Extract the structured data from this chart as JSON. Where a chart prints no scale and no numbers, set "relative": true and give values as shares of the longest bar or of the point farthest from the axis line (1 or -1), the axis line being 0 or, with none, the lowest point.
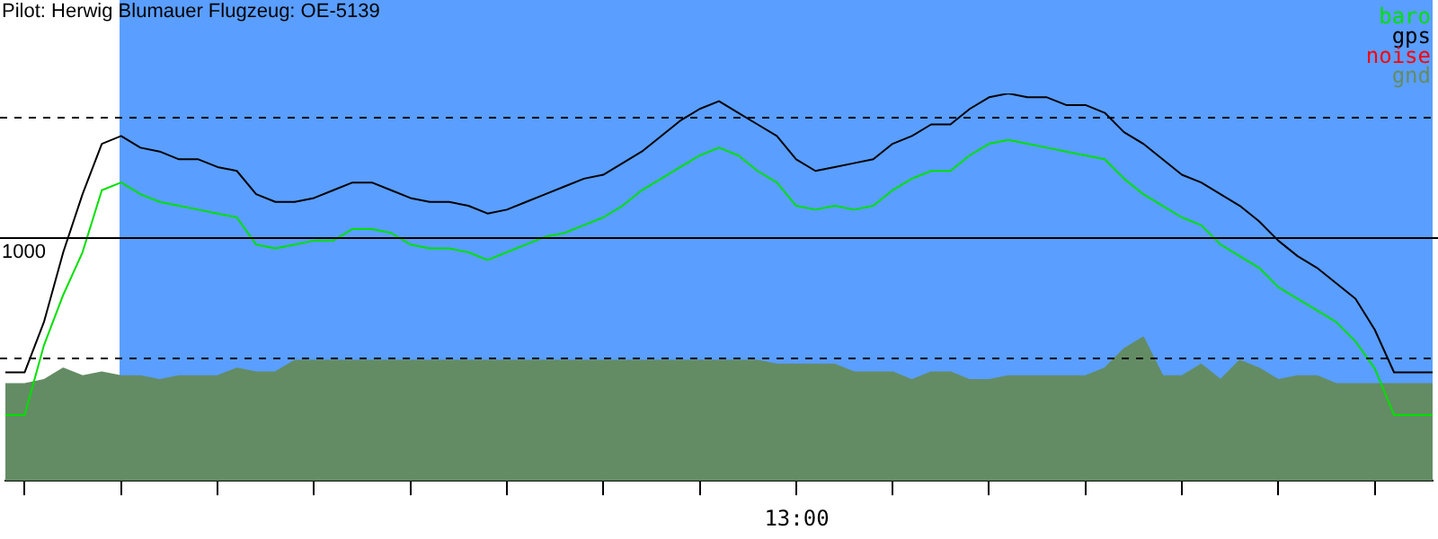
{
  "chart_data": {
    "type": "line",
    "title": "Pilot: Herwig Blumauer Flugzeug: OE-5139",
    "relative": true,
    "grid": false,
    "marker": "none",
    "legend": "top right",
    "annotations": [
      "1000",
      "13:00"
    ],
    "categories": [
      null,
      null,
      null,
      null,
      null,
      null,
      null,
      null,
      null,
      null,
      null,
      null,
      null,
      null,
      null,
      null,
      null,
      null,
      null,
      null,
      null,
      null,
      null,
      null,
      null,
      null,
      null,
      null,
      null,
      null,
      null,
      null,
      null,
      null,
      null,
      null,
      null,
      null,
      null,
      null,
      null,
      null,
      null,
      null,
      null,
      null,
      null,
      null,
      null,
      null,
      null,
      null,
      null,
      null,
      null,
      null,
      null,
      null,
      null,
      null,
      null,
      null,
      null,
      null,
      null,
      null,
      null,
      null,
      null,
      null,
      null,
      null,
      null,
      null,
      null
    ],
    "series": [
      {
        "name": "baro",
        "type": "line",
        "color": "#00e000",
        "values": [
          0.17,
          0.17,
          0.35,
          0.48,
          0.59,
          0.75,
          0.77,
          0.74,
          0.72,
          0.71,
          0.7,
          0.69,
          0.68,
          0.61,
          0.6,
          0.61,
          0.62,
          0.62,
          0.65,
          0.65,
          0.64,
          0.61,
          0.6,
          0.6,
          0.59,
          0.57,
          0.59,
          0.61,
          0.63,
          0.64,
          0.66,
          0.68,
          0.71,
          0.75,
          0.78,
          0.81,
          0.84,
          0.86,
          0.84,
          0.8,
          0.77,
          0.71,
          0.7,
          0.71,
          0.7,
          0.71,
          0.75,
          0.78,
          0.8,
          0.8,
          0.84,
          0.87,
          0.88,
          0.87,
          0.86,
          0.85,
          0.84,
          0.83,
          0.78,
          0.74,
          0.71,
          0.68,
          0.66,
          0.61,
          0.58,
          0.55,
          0.5,
          0.47,
          0.44,
          0.41,
          0.36,
          0.29,
          0.17,
          0.17,
          0.17
        ]
      },
      {
        "name": "gps",
        "type": "line",
        "color": "#000000",
        "values": [
          0.28,
          0.28,
          0.41,
          0.59,
          0.74,
          0.87,
          0.89,
          0.86,
          0.85,
          0.83,
          0.83,
          0.81,
          0.8,
          0.74,
          0.72,
          0.72,
          0.73,
          0.75,
          0.77,
          0.77,
          0.75,
          0.73,
          0.72,
          0.72,
          0.71,
          0.69,
          0.7,
          0.72,
          0.74,
          0.76,
          0.78,
          0.79,
          0.82,
          0.85,
          0.89,
          0.93,
          0.96,
          0.98,
          0.95,
          0.92,
          0.89,
          0.83,
          0.8,
          0.81,
          0.82,
          0.83,
          0.87,
          0.89,
          0.92,
          0.92,
          0.96,
          0.99,
          1,
          0.99,
          0.99,
          0.97,
          0.97,
          0.95,
          0.9,
          0.87,
          0.83,
          0.79,
          0.77,
          0.74,
          0.71,
          0.67,
          0.62,
          0.58,
          0.55,
          0.51,
          0.47,
          0.39,
          0.28,
          0.28,
          0.28
        ]
      },
      {
        "name": "noise",
        "type": "line",
        "color": "#ff0000",
        "values": [
          null,
          null,
          null,
          null,
          null,
          null,
          null,
          null,
          null,
          null,
          null,
          null,
          null,
          null,
          null,
          null,
          null,
          null,
          null,
          null,
          null,
          null,
          null,
          null,
          null,
          null,
          null,
          null,
          null,
          null,
          null,
          null,
          null,
          null,
          null,
          null,
          null,
          null,
          null,
          null,
          null,
          null,
          null,
          null,
          null,
          null,
          null,
          null,
          null,
          null,
          null,
          null,
          null,
          null,
          null,
          null,
          null,
          null,
          null,
          null,
          null,
          null,
          null,
          null,
          null,
          null,
          null,
          null,
          null,
          null,
          null,
          null,
          null,
          null,
          null
        ]
      },
      {
        "name": "gnd",
        "type": "area",
        "color": "#648c64",
        "values": [
          0.25,
          0.25,
          0.26,
          0.29,
          0.27,
          0.28,
          0.27,
          0.27,
          0.26,
          0.27,
          0.27,
          0.27,
          0.29,
          0.28,
          0.28,
          0.31,
          0.31,
          0.31,
          0.31,
          0.31,
          0.31,
          0.31,
          0.31,
          0.31,
          0.31,
          0.31,
          0.31,
          0.31,
          0.31,
          0.31,
          0.31,
          0.31,
          0.31,
          0.31,
          0.31,
          0.31,
          0.31,
          0.31,
          0.31,
          0.31,
          0.3,
          0.3,
          0.3,
          0.3,
          0.28,
          0.28,
          0.28,
          0.26,
          0.28,
          0.28,
          0.26,
          0.26,
          0.27,
          0.27,
          0.27,
          0.27,
          0.27,
          0.29,
          0.34,
          0.37,
          0.27,
          0.27,
          0.3,
          0.26,
          0.31,
          0.29,
          0.26,
          0.27,
          0.27,
          0.25,
          0.25,
          0.25,
          0.25,
          0.25,
          0.25
        ]
      }
    ],
    "ref_lines": [
      {
        "axis": "y",
        "value": 0.94,
        "line_style": "dashed",
        "color": "#000000"
      },
      {
        "axis": "y",
        "value": 0.63,
        "line_style": "solid",
        "color": "#000000"
      },
      {
        "axis": "y",
        "value": 0.32,
        "line_style": "dashed",
        "color": "#000000"
      }
    ]
  }
}
